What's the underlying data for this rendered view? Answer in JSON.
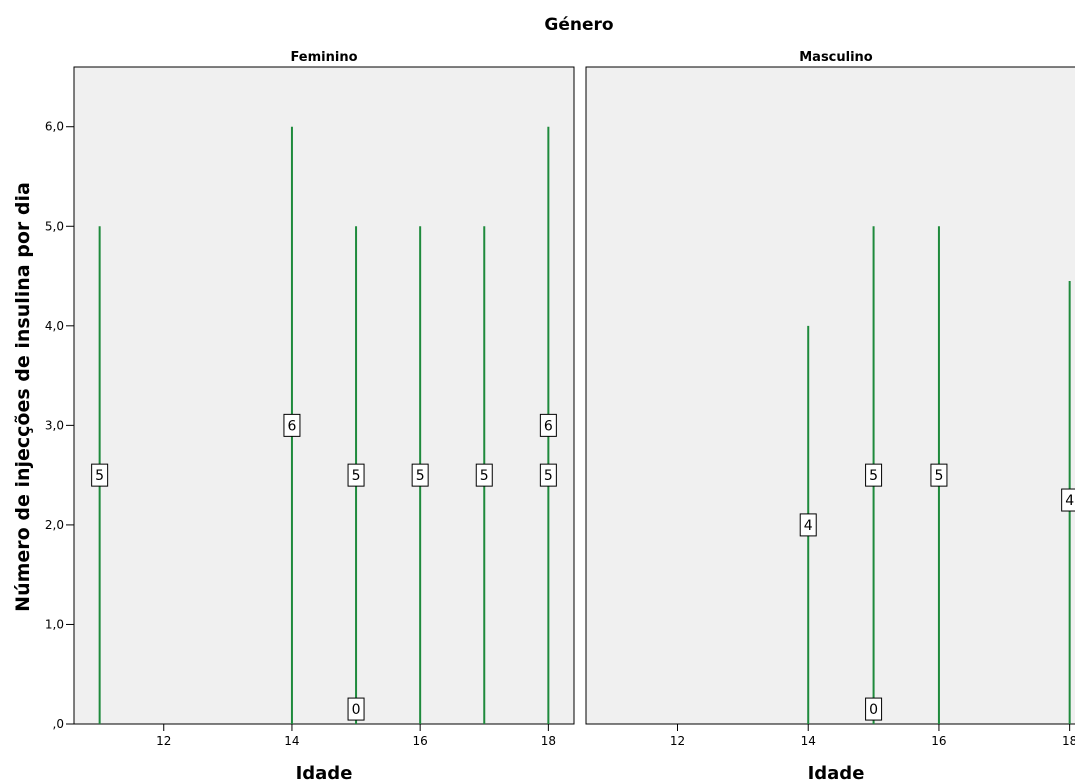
{
  "chart_data": {
    "type": "bar",
    "title": "Género",
    "ylabel": "Número de injecções de insulina por dia",
    "ylim": [
      0,
      6.6
    ],
    "yticks": [
      0,
      1,
      2,
      3,
      4,
      5,
      6
    ],
    "ytick_labels": [
      ",0",
      "1,0",
      "2,0",
      "3,0",
      "4,0",
      "5,0",
      "6,0"
    ],
    "line_color": "#1e8a3c",
    "panel_background": "#f0f0f0",
    "panels": [
      {
        "title": "Feminino",
        "xlabel": "Idade",
        "xlim": [
          10.6,
          18.4
        ],
        "xticks": [
          12,
          14,
          16,
          18
        ],
        "bars": [
          {
            "x": 11,
            "value": 5
          },
          {
            "x": 14,
            "value": 6
          },
          {
            "x": 15,
            "value": 5
          },
          {
            "x": 16,
            "value": 5
          },
          {
            "x": 17,
            "value": 5
          },
          {
            "x": 18,
            "value": 6
          }
        ],
        "labels": [
          {
            "x": 11,
            "y": 2.5,
            "text": "5"
          },
          {
            "x": 14,
            "y": 3.0,
            "text": "6"
          },
          {
            "x": 15,
            "y": 2.5,
            "text": "5"
          },
          {
            "x": 15,
            "y": 0.15,
            "text": "0"
          },
          {
            "x": 16,
            "y": 2.5,
            "text": "5"
          },
          {
            "x": 17,
            "y": 2.5,
            "text": "5"
          },
          {
            "x": 18,
            "y": 3.0,
            "text": "6"
          },
          {
            "x": 18,
            "y": 2.5,
            "text": "5"
          }
        ]
      },
      {
        "title": "Masculino",
        "xlabel": "Idade",
        "xlim": [
          10.6,
          18.25
        ],
        "xticks": [
          12,
          14,
          16,
          18
        ],
        "bars": [
          {
            "x": 14,
            "value": 4
          },
          {
            "x": 15,
            "value": 5
          },
          {
            "x": 16,
            "value": 5
          },
          {
            "x": 18,
            "value": 4.45
          }
        ],
        "labels": [
          {
            "x": 14,
            "y": 2.0,
            "text": "4"
          },
          {
            "x": 15,
            "y": 2.5,
            "text": "5"
          },
          {
            "x": 15,
            "y": 0.15,
            "text": "0"
          },
          {
            "x": 16,
            "y": 2.5,
            "text": "5"
          },
          {
            "x": 18,
            "y": 2.25,
            "text": "4"
          }
        ]
      }
    ]
  }
}
